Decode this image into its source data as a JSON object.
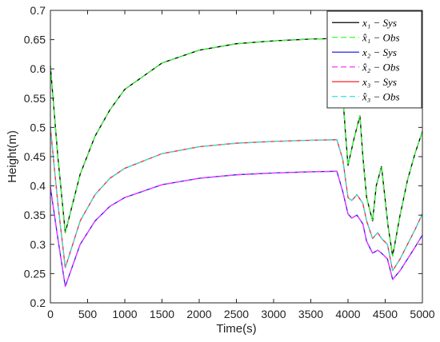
{
  "chart_data": {
    "type": "line",
    "xlabel": "Time(s)",
    "ylabel": "Height(m)",
    "xlim": [
      0,
      5000
    ],
    "ylim": [
      0.2,
      0.7
    ],
    "xticks": [
      "0",
      "500",
      "1000",
      "1500",
      "2000",
      "2500",
      "3000",
      "3500",
      "4000",
      "4500",
      "5000"
    ],
    "yticks": [
      "0.2",
      "0.25",
      "0.3",
      "0.35",
      "0.4",
      "0.45",
      "0.5",
      "0.55",
      "0.6",
      "0.65",
      "0.7"
    ],
    "grid": false,
    "legend_position": "top-right",
    "series": [
      {
        "name": "x₁ − Sys",
        "color": "#000000",
        "dash": "solid",
        "x": [
          0,
          100,
          200,
          400,
          600,
          800,
          1000,
          1500,
          2000,
          2500,
          3000,
          3500,
          3850,
          3900,
          3960,
          4000,
          4080,
          4160,
          4200,
          4250,
          4330,
          4380,
          4450,
          4540,
          4600,
          4700,
          4800,
          4900,
          5000
        ],
        "y": [
          0.605,
          0.45,
          0.32,
          0.42,
          0.485,
          0.53,
          0.565,
          0.61,
          0.632,
          0.643,
          0.648,
          0.651,
          0.652,
          0.61,
          0.5,
          0.435,
          0.48,
          0.52,
          0.45,
          0.38,
          0.34,
          0.4,
          0.433,
          0.33,
          0.28,
          0.35,
          0.41,
          0.455,
          0.493
        ]
      },
      {
        "name": "x̂₁ − Obs",
        "color": "#33ff33",
        "dash": "dashed",
        "x": [
          0,
          100,
          200,
          400,
          600,
          800,
          1000,
          1500,
          2000,
          2500,
          3000,
          3500,
          3850,
          3900,
          3960,
          4000,
          4080,
          4160,
          4200,
          4250,
          4330,
          4380,
          4450,
          4540,
          4600,
          4700,
          4800,
          4900,
          5000
        ],
        "y": [
          0.605,
          0.45,
          0.32,
          0.42,
          0.485,
          0.53,
          0.565,
          0.61,
          0.632,
          0.643,
          0.648,
          0.651,
          0.652,
          0.61,
          0.5,
          0.435,
          0.48,
          0.52,
          0.45,
          0.38,
          0.34,
          0.4,
          0.433,
          0.33,
          0.28,
          0.35,
          0.41,
          0.455,
          0.493
        ]
      },
      {
        "name": "x₂ − Sys",
        "color": "#2222ee",
        "dash": "solid",
        "x": [
          0,
          100,
          200,
          400,
          600,
          800,
          1000,
          1500,
          2000,
          2500,
          3000,
          3500,
          3850,
          3930,
          4000,
          4050,
          4120,
          4200,
          4250,
          4330,
          4400,
          4450,
          4530,
          4600,
          4700,
          4800,
          4900,
          5000
        ],
        "y": [
          0.398,
          0.31,
          0.228,
          0.3,
          0.34,
          0.365,
          0.38,
          0.402,
          0.413,
          0.419,
          0.422,
          0.424,
          0.425,
          0.39,
          0.352,
          0.345,
          0.35,
          0.335,
          0.305,
          0.285,
          0.29,
          0.285,
          0.275,
          0.24,
          0.255,
          0.275,
          0.295,
          0.316
        ]
      },
      {
        "name": "x̂₂ − Obs",
        "color": "#ff33ff",
        "dash": "dashed",
        "x": [
          0,
          100,
          200,
          400,
          600,
          800,
          1000,
          1500,
          2000,
          2500,
          3000,
          3500,
          3850,
          3930,
          4000,
          4050,
          4120,
          4200,
          4250,
          4330,
          4400,
          4450,
          4530,
          4600,
          4700,
          4800,
          4900,
          5000
        ],
        "y": [
          0.398,
          0.31,
          0.228,
          0.3,
          0.34,
          0.365,
          0.38,
          0.402,
          0.413,
          0.419,
          0.422,
          0.424,
          0.425,
          0.39,
          0.352,
          0.345,
          0.35,
          0.335,
          0.305,
          0.285,
          0.29,
          0.285,
          0.275,
          0.24,
          0.255,
          0.275,
          0.295,
          0.316
        ]
      },
      {
        "name": "x₃ − Sys",
        "color": "#ff2222",
        "dash": "solid",
        "x": [
          0,
          100,
          200,
          400,
          600,
          800,
          1000,
          1500,
          2000,
          2500,
          3000,
          3500,
          3850,
          3930,
          4000,
          4050,
          4120,
          4200,
          4250,
          4330,
          4400,
          4450,
          4530,
          4600,
          4700,
          4800,
          4900,
          5000
        ],
        "y": [
          0.5,
          0.37,
          0.26,
          0.34,
          0.385,
          0.413,
          0.43,
          0.455,
          0.467,
          0.473,
          0.476,
          0.478,
          0.479,
          0.445,
          0.38,
          0.375,
          0.385,
          0.37,
          0.34,
          0.31,
          0.32,
          0.31,
          0.3,
          0.255,
          0.275,
          0.3,
          0.325,
          0.352
        ]
      },
      {
        "name": "x̂₃ − Obs",
        "color": "#33dddd",
        "dash": "dashed",
        "x": [
          0,
          100,
          200,
          400,
          600,
          800,
          1000,
          1500,
          2000,
          2500,
          3000,
          3500,
          3850,
          3930,
          4000,
          4050,
          4120,
          4200,
          4250,
          4330,
          4400,
          4450,
          4530,
          4600,
          4700,
          4800,
          4900,
          5000
        ],
        "y": [
          0.5,
          0.37,
          0.26,
          0.34,
          0.385,
          0.413,
          0.43,
          0.455,
          0.467,
          0.473,
          0.476,
          0.478,
          0.479,
          0.445,
          0.38,
          0.375,
          0.385,
          0.37,
          0.34,
          0.31,
          0.32,
          0.31,
          0.3,
          0.255,
          0.275,
          0.3,
          0.325,
          0.352
        ]
      }
    ]
  }
}
